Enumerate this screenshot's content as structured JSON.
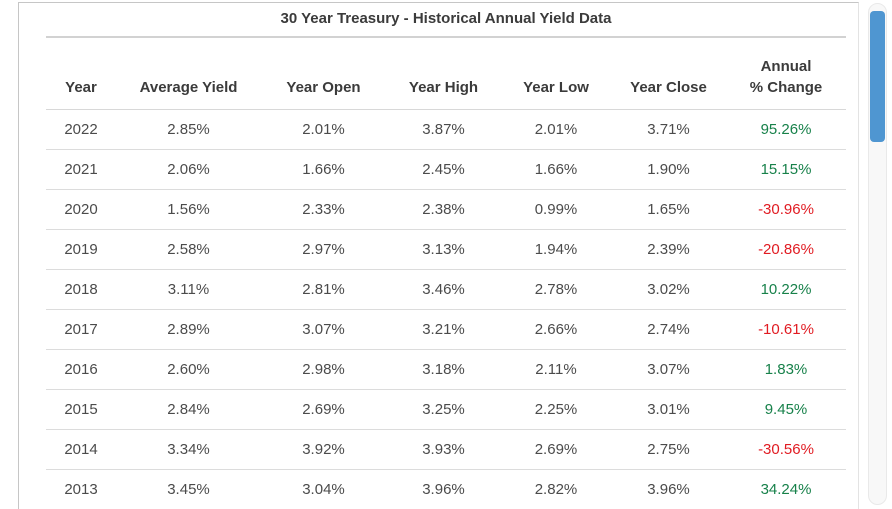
{
  "title": "30 Year Treasury - Historical Annual Yield Data",
  "table": {
    "headers": [
      "Year",
      "Average Yield",
      "Year Open",
      "Year High",
      "Year Low",
      "Year Close"
    ],
    "change_header": {
      "line1": "Annual",
      "line2": "% Change"
    },
    "rows": [
      {
        "year": "2022",
        "avg": "2.85%",
        "open": "2.01%",
        "high": "3.87%",
        "low": "2.01%",
        "close": "3.71%",
        "change": "95.26%",
        "direction": "up"
      },
      {
        "year": "2021",
        "avg": "2.06%",
        "open": "1.66%",
        "high": "2.45%",
        "low": "1.66%",
        "close": "1.90%",
        "change": "15.15%",
        "direction": "up"
      },
      {
        "year": "2020",
        "avg": "1.56%",
        "open": "2.33%",
        "high": "2.38%",
        "low": "0.99%",
        "close": "1.65%",
        "change": "-30.96%",
        "direction": "down"
      },
      {
        "year": "2019",
        "avg": "2.58%",
        "open": "2.97%",
        "high": "3.13%",
        "low": "1.94%",
        "close": "2.39%",
        "change": "-20.86%",
        "direction": "down"
      },
      {
        "year": "2018",
        "avg": "3.11%",
        "open": "2.81%",
        "high": "3.46%",
        "low": "2.78%",
        "close": "3.02%",
        "change": "10.22%",
        "direction": "up"
      },
      {
        "year": "2017",
        "avg": "2.89%",
        "open": "3.07%",
        "high": "3.21%",
        "low": "2.66%",
        "close": "2.74%",
        "change": "-10.61%",
        "direction": "down"
      },
      {
        "year": "2016",
        "avg": "2.60%",
        "open": "2.98%",
        "high": "3.18%",
        "low": "2.11%",
        "close": "3.07%",
        "change": "1.83%",
        "direction": "up"
      },
      {
        "year": "2015",
        "avg": "2.84%",
        "open": "2.69%",
        "high": "3.25%",
        "low": "2.25%",
        "close": "3.01%",
        "change": "9.45%",
        "direction": "up"
      },
      {
        "year": "2014",
        "avg": "3.34%",
        "open": "3.92%",
        "high": "3.93%",
        "low": "2.69%",
        "close": "2.75%",
        "change": "-30.56%",
        "direction": "down"
      },
      {
        "year": "2013",
        "avg": "3.45%",
        "open": "3.04%",
        "high": "3.96%",
        "low": "2.82%",
        "close": "3.96%",
        "change": "34.24%",
        "direction": "up"
      }
    ]
  },
  "colors": {
    "positive": "#17814a",
    "negative": "#e11b22",
    "scrollbar_thumb": "#4f96d1"
  }
}
